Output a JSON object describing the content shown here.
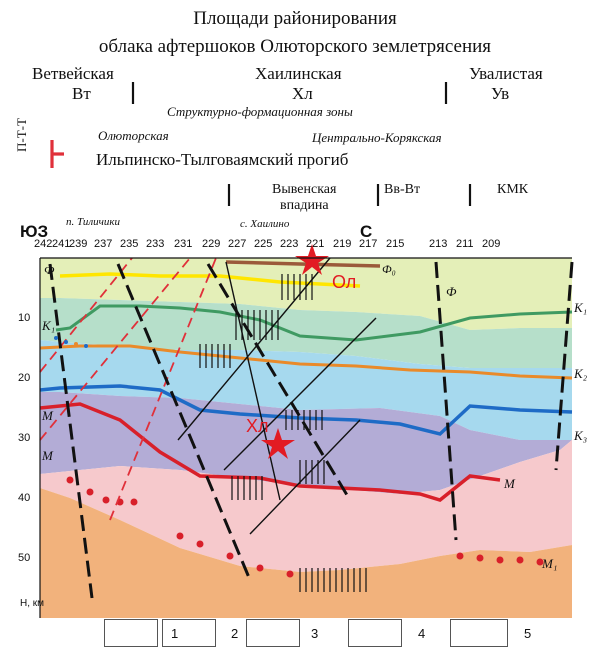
{
  "title": {
    "line1": "Площади районирования",
    "line2": "облака афтершоков Олюторского землетрясения"
  },
  "regions": {
    "left_name": "Ветвейская",
    "left_code": "Вт",
    "center_name": "Хаилинская",
    "center_code": "Хл",
    "right_name": "Увалистая",
    "right_code": "Ув"
  },
  "zones": {
    "caption": "Структурно-формационная зоны",
    "west": "Олюторская",
    "east": "Центрально-Корякская",
    "label_vertical": "П-Т-Т",
    "trough": "Ильпинско-Тылговаямский прогиб",
    "depression_line1": "Вывенская",
    "depression_line2": "впадина",
    "vv_vt": "Вв-Вт",
    "kmk": "КМК"
  },
  "section": {
    "left_compass": "ЮЗ",
    "right_compass": "С",
    "place_left": "п. Тиличики",
    "place_mid": "с. Хаилино",
    "pickets": [
      "242",
      "241",
      "239",
      "237",
      "235",
      "233",
      "231",
      "229",
      "227",
      "225",
      "223",
      "221",
      "219",
      "217",
      "215",
      "213",
      "211",
      "209"
    ],
    "depths": [
      "10",
      "20",
      "30",
      "40",
      "50"
    ],
    "depth_axis": "H, км",
    "quake_ol": "Ол",
    "quake_hl": "Хл",
    "phi_left": "Ф",
    "phi_mid": "Ф",
    "phi0": "Ф₀",
    "k1_left": "K₁",
    "k1_right": "K₁",
    "k2_right": "K₂",
    "k3_right": "K₃",
    "m_left1": "M",
    "m_left2": "M",
    "m_right": "M",
    "m1_right": "M₁"
  },
  "legend": {
    "items": [
      "1",
      "2",
      "3",
      "4",
      "5"
    ]
  },
  "colors": {
    "layer_top": "#e4efb8",
    "layer_green": "#b6dfca",
    "layer_cyan": "#a6d9ee",
    "layer_violet": "#b3acd6",
    "layer_pink": "#f6c9cc",
    "layer_orange": "#f2b27c",
    "line_yellow": "#ffe600",
    "line_green": "#3f9a62",
    "line_orange": "#e98a2a",
    "line_blue": "#1e6bc6",
    "line_red": "#d8202a",
    "star": "#e21b23",
    "fault_red": "#e0303a",
    "brown": "#9b5a3a"
  }
}
